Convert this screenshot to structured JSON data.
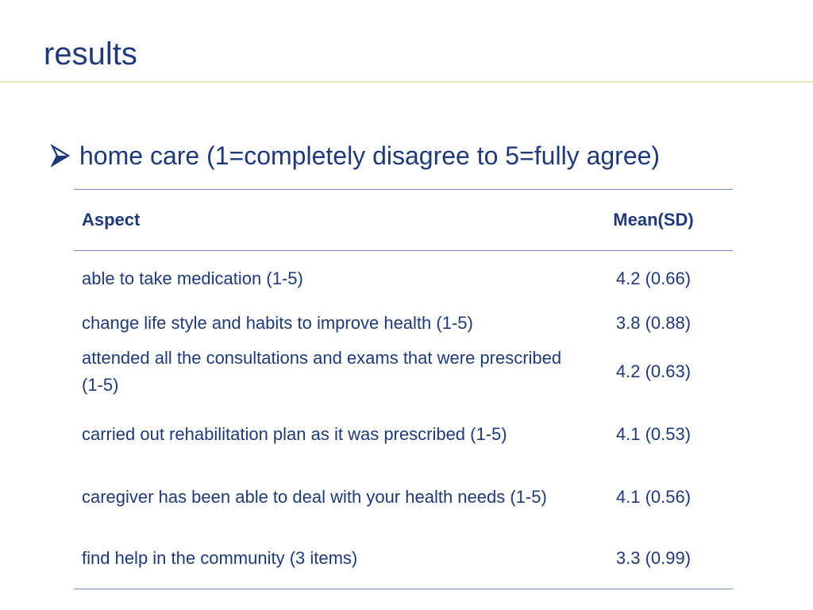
{
  "slide": {
    "title": "results",
    "bullet": "home care (1=completely disagree to 5=fully agree)",
    "bullet_icon": "arrow-bullet-icon",
    "accent_color": "#1f3a7a",
    "rule_color": "#e6eab4"
  },
  "table": {
    "headers": [
      "Aspect",
      "Mean(SD)"
    ],
    "rows": [
      {
        "aspect": "able to take medication (1-5)",
        "mean": "4.2 (0.66)"
      },
      {
        "aspect": "change life style and habits to improve health (1-5)",
        "mean": "3.8 (0.88)"
      },
      {
        "aspect": "attended all the consultations and exams that were prescribed (1-5)",
        "mean": "4.2 (0.63)"
      },
      {
        "aspect": "carried out rehabilitation plan as it was prescribed (1-5)",
        "mean": "4.1 (0.53)"
      },
      {
        "aspect": "caregiver has been able to deal with your health needs (1-5)",
        "mean": "4.1 (0.56)"
      },
      {
        "aspect": "find help in the community (3 items)",
        "mean": "3.3 (0.99)"
      }
    ]
  }
}
